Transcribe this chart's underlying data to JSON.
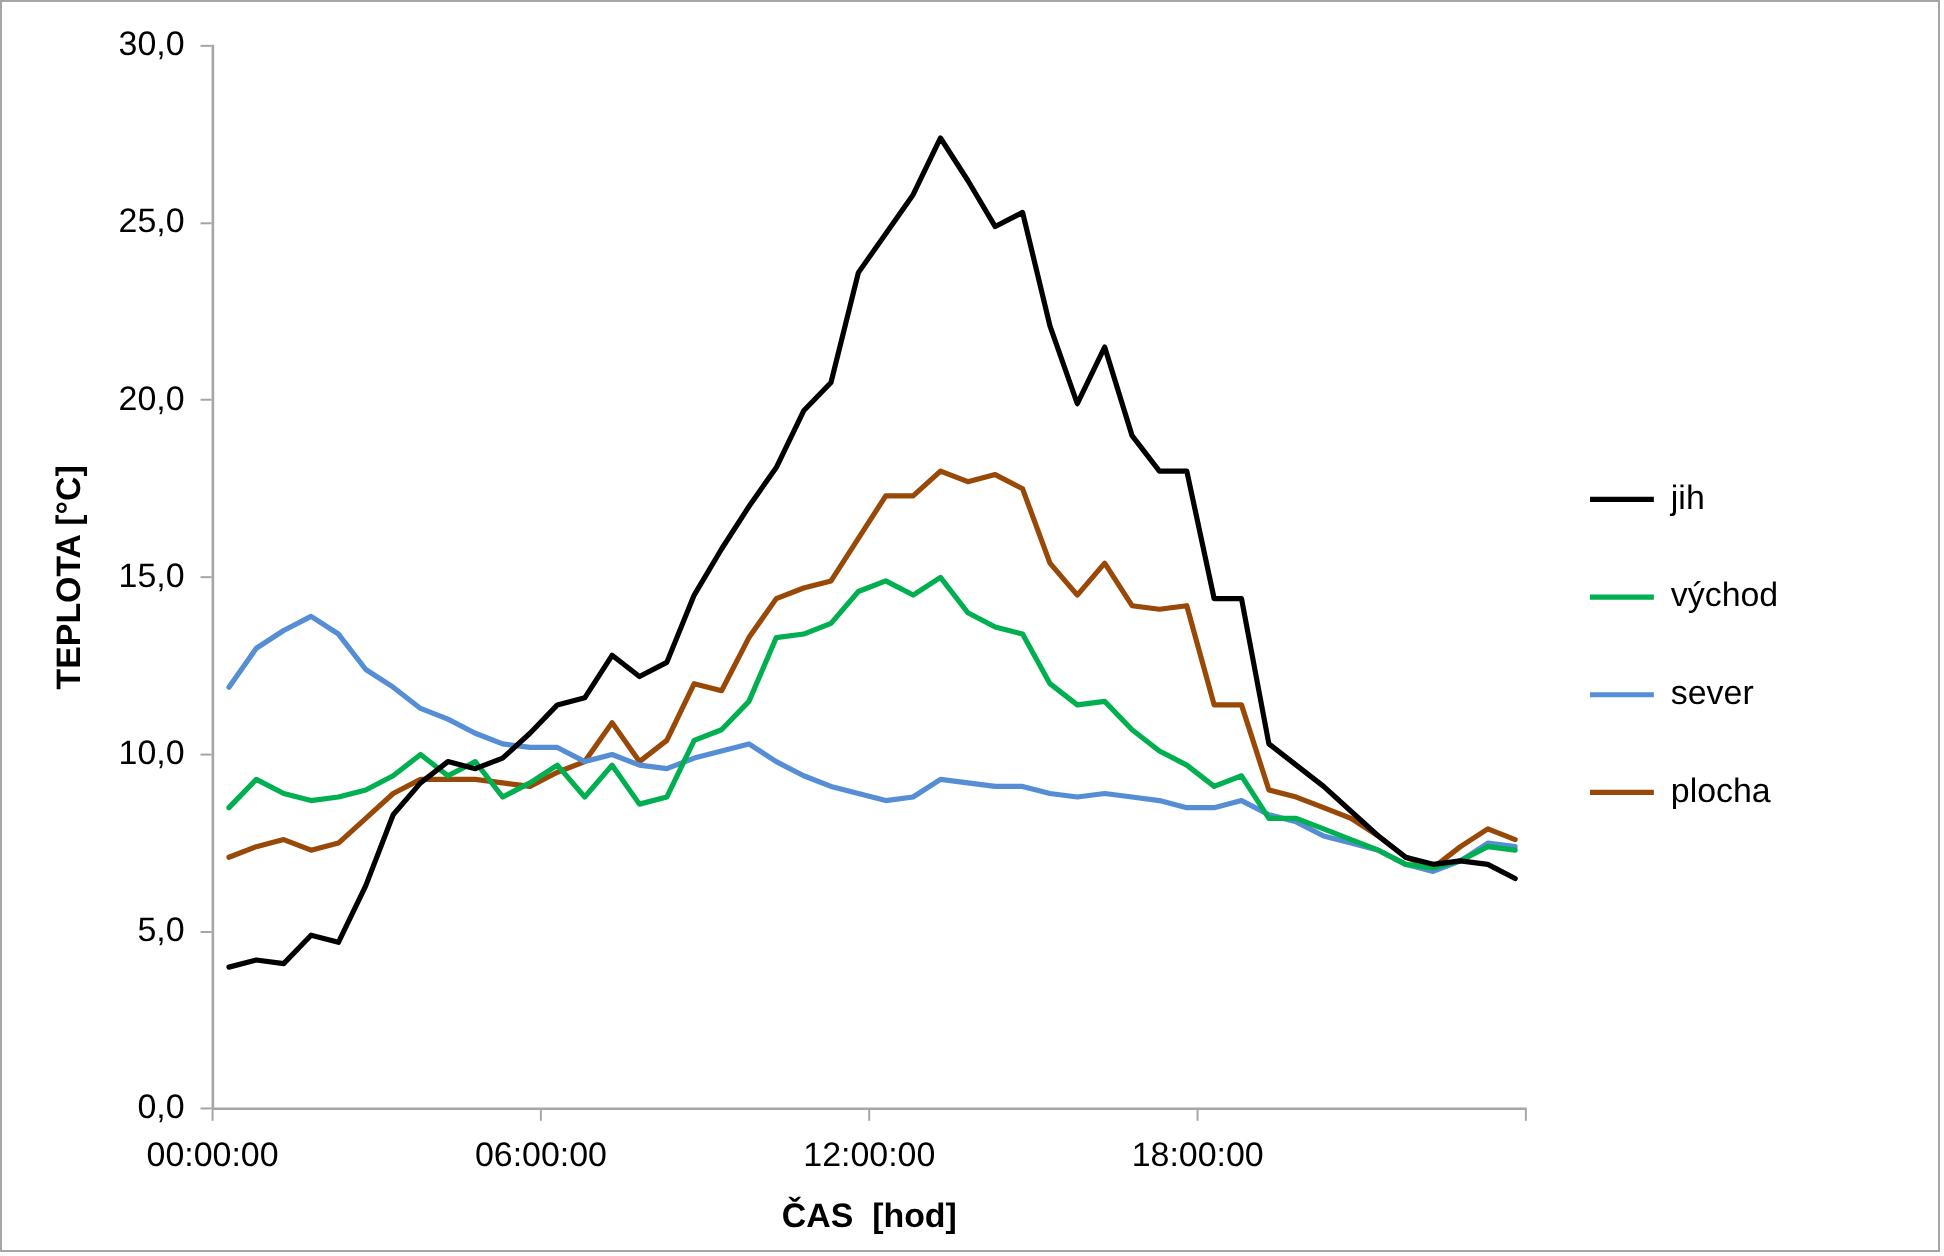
{
  "chart_data": {
    "type": "line",
    "xlabel": "ČAS  [hod]",
    "ylabel": "TEPLOTA [°C]",
    "x": [
      0.3,
      0.8,
      1.3,
      1.8,
      2.3,
      2.8,
      3.3,
      3.8,
      4.3,
      4.8,
      5.3,
      5.8,
      6.3,
      6.8,
      7.3,
      7.8,
      8.3,
      8.8,
      9.3,
      9.8,
      10.3,
      10.8,
      11.3,
      11.8,
      12.3,
      12.8,
      13.3,
      13.8,
      14.3,
      14.8,
      15.3,
      15.8,
      16.3,
      16.8,
      17.3,
      17.8,
      18.3,
      18.8,
      19.3,
      19.8,
      20.3,
      20.8,
      21.3,
      21.8,
      22.3,
      22.8,
      23.3,
      23.8
    ],
    "series": [
      {
        "name": "jih",
        "color": "#000000",
        "values": [
          4.0,
          4.2,
          4.1,
          4.9,
          4.7,
          6.3,
          8.3,
          9.2,
          9.8,
          9.6,
          9.9,
          10.6,
          11.4,
          11.6,
          12.8,
          12.2,
          12.6,
          14.5,
          15.8,
          17.0,
          18.1,
          19.7,
          20.5,
          23.6,
          24.7,
          25.8,
          27.4,
          26.2,
          24.9,
          25.3,
          22.1,
          19.9,
          21.5,
          19.0,
          18.0,
          18.0,
          14.4,
          14.4,
          10.3,
          9.7,
          9.1,
          8.4,
          7.7,
          7.1,
          6.9,
          7.0,
          6.9,
          6.5
        ]
      },
      {
        "name": "východ",
        "color": "#00b050",
        "values": [
          8.5,
          9.3,
          8.9,
          8.7,
          8.8,
          9.0,
          9.4,
          10.0,
          9.4,
          9.8,
          8.8,
          9.2,
          9.7,
          8.8,
          9.7,
          8.6,
          8.8,
          10.4,
          10.7,
          11.5,
          13.3,
          13.4,
          13.7,
          14.6,
          14.9,
          14.5,
          15.0,
          14.0,
          13.6,
          13.4,
          12.0,
          11.4,
          11.5,
          10.7,
          10.1,
          9.7,
          9.1,
          9.4,
          8.2,
          8.2,
          7.9,
          7.6,
          7.3,
          6.9,
          6.8,
          7.0,
          7.4,
          7.3
        ]
      },
      {
        "name": "sever",
        "color": "#558ed5",
        "values": [
          11.9,
          13.0,
          13.5,
          13.9,
          13.4,
          12.4,
          11.9,
          11.3,
          11.0,
          10.6,
          10.3,
          10.2,
          10.2,
          9.8,
          10.0,
          9.7,
          9.6,
          9.9,
          10.1,
          10.3,
          9.8,
          9.4,
          9.1,
          8.9,
          8.7,
          8.8,
          9.3,
          9.2,
          9.1,
          9.1,
          8.9,
          8.8,
          8.9,
          8.8,
          8.7,
          8.5,
          8.5,
          8.7,
          8.3,
          8.1,
          7.7,
          7.5,
          7.3,
          6.9,
          6.7,
          7.0,
          7.5,
          7.4
        ]
      },
      {
        "name": "plocha",
        "color": "#984807",
        "values": [
          7.1,
          7.4,
          7.6,
          7.3,
          7.5,
          8.2,
          8.9,
          9.3,
          9.3,
          9.3,
          9.2,
          9.1,
          9.5,
          9.8,
          10.9,
          9.8,
          10.4,
          12.0,
          11.8,
          13.3,
          14.4,
          14.7,
          14.9,
          16.1,
          17.3,
          17.3,
          18.0,
          17.7,
          17.9,
          17.5,
          15.4,
          14.5,
          15.4,
          14.2,
          14.1,
          14.2,
          11.4,
          11.4,
          9.0,
          8.8,
          8.5,
          8.2,
          7.7,
          7.1,
          6.8,
          7.4,
          7.9,
          7.6
        ]
      }
    ],
    "xlim": [
      0,
      24
    ],
    "xticks": [
      {
        "value": 0,
        "label": "00:00:00"
      },
      {
        "value": 6,
        "label": "06:00:00"
      },
      {
        "value": 12,
        "label": "12:00:00"
      },
      {
        "value": 18,
        "label": "18:00:00"
      },
      {
        "value": 24,
        "label": null
      }
    ],
    "ylim": [
      0,
      30
    ],
    "yticks": [
      {
        "value": 0,
        "label": "0,0"
      },
      {
        "value": 5,
        "label": "5,0"
      },
      {
        "value": 10,
        "label": "10,0"
      },
      {
        "value": 15,
        "label": "15,0"
      },
      {
        "value": 20,
        "label": "20,0"
      },
      {
        "value": 25,
        "label": "25,0"
      },
      {
        "value": 30,
        "label": "30,0"
      }
    ],
    "grid": false,
    "legend": "right",
    "marker": "none",
    "line_style": "solid"
  }
}
